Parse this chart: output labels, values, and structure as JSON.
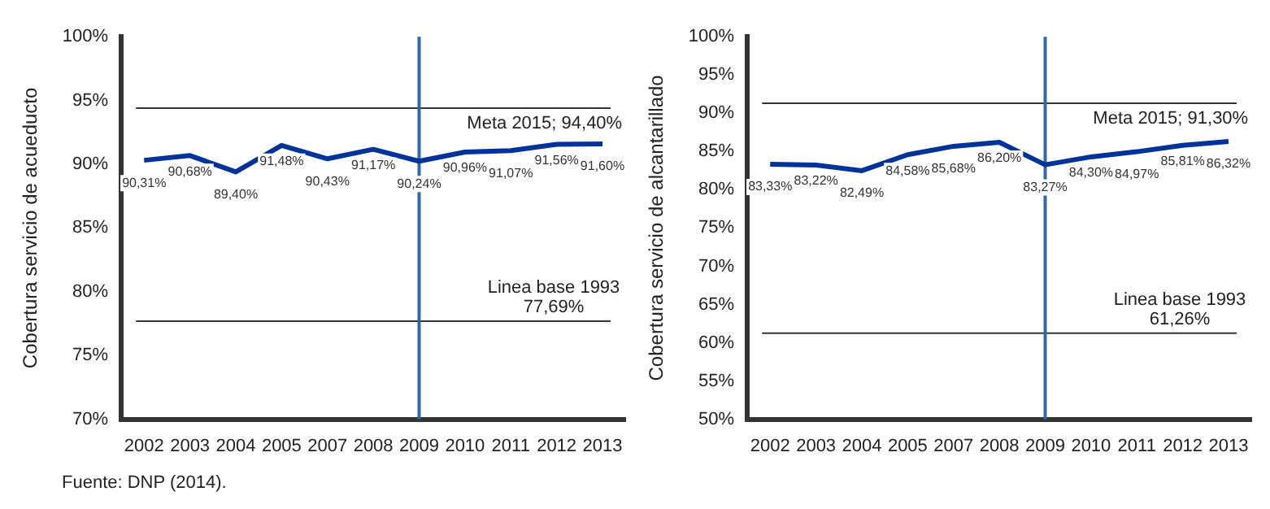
{
  "chart_data": [
    {
      "type": "line",
      "ylabel": "Cobertura servicio de acueducto",
      "categories": [
        "2002",
        "2003",
        "2004",
        "2005",
        "2007",
        "2008",
        "2009",
        "2010",
        "2011",
        "2012",
        "2013"
      ],
      "series": [
        {
          "color": "#003399",
          "values": [
            90.31,
            90.68,
            89.4,
            91.48,
            90.43,
            91.17,
            90.24,
            90.96,
            91.07,
            91.56,
            91.6
          ],
          "value_labels": [
            "90,31%",
            "90,68%",
            "89,40%",
            "91,48%",
            "90,43%",
            "91,17%",
            "90,24%",
            "90,96%",
            "91,07%",
            "91,56%",
            "91,60%"
          ]
        }
      ],
      "ylim": [
        70,
        100
      ],
      "yticks": [
        {
          "value": 70,
          "label": "70%"
        },
        {
          "value": 75,
          "label": "75%"
        },
        {
          "value": 80,
          "label": "80%"
        },
        {
          "value": 85,
          "label": "85%"
        },
        {
          "value": 90,
          "label": "90%"
        },
        {
          "value": 95,
          "label": "95%"
        },
        {
          "value": 100,
          "label": "100%"
        }
      ],
      "ref_lines": [
        {
          "axis": "y",
          "value": 94.4,
          "label": "Meta 2015; 94,40%",
          "color": "#333333"
        },
        {
          "axis": "y",
          "value": 77.69,
          "label": "Linea base 1993\n77,69%",
          "color": "#333333"
        },
        {
          "axis": "x",
          "value": "2009",
          "color": "#2e6aa8"
        }
      ],
      "grid": false,
      "legend": false,
      "marker": "none",
      "line_style": "solid",
      "annotations": [
        "Fuente: DNP (2014)."
      ]
    },
    {
      "type": "line",
      "ylabel": "Cobertura servicio de alcantarillado",
      "categories": [
        "2002",
        "2003",
        "2004",
        "2005",
        "2007",
        "2008",
        "2009",
        "2010",
        "2011",
        "2012",
        "2013"
      ],
      "series": [
        {
          "color": "#003399",
          "values": [
            83.33,
            83.22,
            82.49,
            84.58,
            85.68,
            86.2,
            83.27,
            84.3,
            84.97,
            85.81,
            86.32
          ],
          "value_labels": [
            "83,33%",
            "83,22%",
            "82,49%",
            "84,58%",
            "85,68%",
            "86,20%",
            "83,27%",
            "84,30%",
            "84,97%",
            "85,81%",
            "86,32%"
          ]
        }
      ],
      "ylim": [
        50,
        100
      ],
      "yticks": [
        {
          "value": 50,
          "label": "50%"
        },
        {
          "value": 55,
          "label": "55%"
        },
        {
          "value": 60,
          "label": "60%"
        },
        {
          "value": 65,
          "label": "65%"
        },
        {
          "value": 70,
          "label": "70%"
        },
        {
          "value": 75,
          "label": "75%"
        },
        {
          "value": 80,
          "label": "80%"
        },
        {
          "value": 85,
          "label": "85%"
        },
        {
          "value": 90,
          "label": "90%"
        },
        {
          "value": 95,
          "label": "95%"
        },
        {
          "value": 100,
          "label": "100%"
        }
      ],
      "ref_lines": [
        {
          "axis": "y",
          "value": 91.3,
          "label": "Meta 2015; 91,30%",
          "color": "#333333"
        },
        {
          "axis": "y",
          "value": 61.26,
          "label": "Linea base 1993\n61,26%",
          "color": "#333333"
        },
        {
          "axis": "x",
          "value": "2009",
          "color": "#2e6aa8"
        }
      ],
      "grid": false,
      "legend": false,
      "marker": "none",
      "line_style": "solid"
    }
  ]
}
